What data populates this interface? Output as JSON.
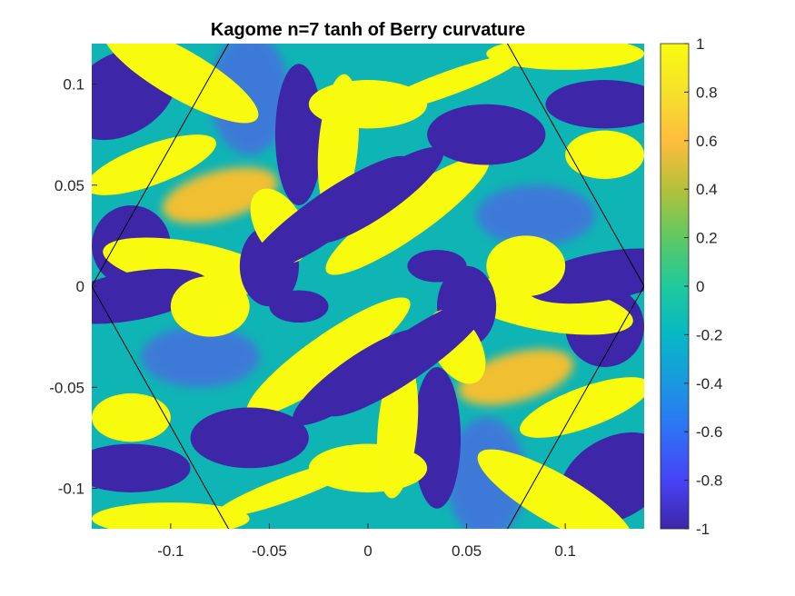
{
  "chart_data": {
    "type": "heatmap",
    "title": "Kagome n=7 tanh of Berry curvature",
    "xlabel": "",
    "ylabel": "",
    "xlim": [
      -0.14,
      0.14
    ],
    "ylim": [
      -0.12,
      0.12
    ],
    "x_ticks": [
      -0.1,
      -0.05,
      0,
      0.05,
      0.1
    ],
    "x_tick_labels": [
      "-0.1",
      "-0.05",
      "0",
      "0.05",
      "0.1"
    ],
    "y_ticks": [
      0.1,
      0.05,
      0,
      -0.05,
      -0.1
    ],
    "y_tick_labels": [
      "0.1",
      "0.05",
      "0",
      "-0.05",
      "-0.1"
    ],
    "colorbar": {
      "range": [
        -1,
        1
      ],
      "ticks": [
        1,
        0.8,
        0.6,
        0.4,
        0.2,
        0,
        -0.2,
        -0.4,
        -0.6,
        -0.8,
        -1
      ],
      "tick_labels": [
        "1",
        "0.8",
        "0.6",
        "0.4",
        "0.2",
        "0",
        "-0.2",
        "-0.4",
        "-0.6",
        "-0.8",
        "-1"
      ],
      "colormap": "parula",
      "colors": [
        "#3e26a8",
        "#4743f7",
        "#2f70f6",
        "#1a98e0",
        "#07b8c5",
        "#20c99c",
        "#5ec962",
        "#b4c13a",
        "#ffbd3d",
        "#f5e12b",
        "#f9fb0e"
      ]
    },
    "overlay": {
      "shape": "hexagon",
      "vertices": [
        [
          -0.14,
          0
        ],
        [
          -0.07,
          0.1212
        ],
        [
          0.07,
          0.1212
        ],
        [
          0.14,
          0
        ],
        [
          0.07,
          -0.1212
        ],
        [
          -0.07,
          -0.1212
        ]
      ],
      "color": "#000000"
    },
    "field_colors": {
      "neg": "#3e26a8",
      "zero": "#0fb4b4",
      "pos": "#f9fb0e",
      "mid_pos": "#f0bf33",
      "mid_neg": "#3d7ad8"
    },
    "grid": false
  }
}
